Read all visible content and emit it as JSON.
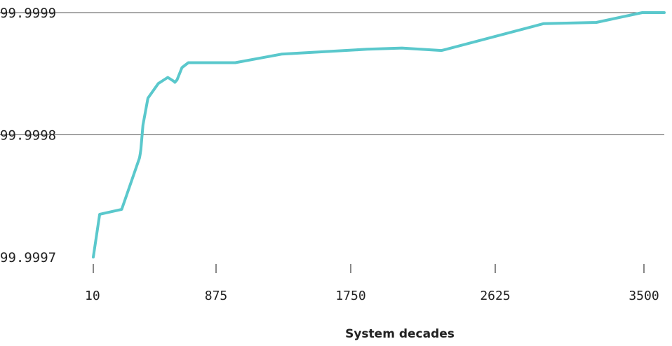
{
  "chart_data": {
    "type": "line",
    "title": "",
    "xlabel": "System decades",
    "ylabel": "",
    "xlim": [
      10,
      3500
    ],
    "ylim": [
      99.9997,
      99.9999
    ],
    "x_ticks": [
      10,
      875,
      1750,
      2625,
      3500
    ],
    "y_ticks": [
      "99.9997",
      "99.9998",
      "99.9999"
    ],
    "grid": "horizontal",
    "legend": "none",
    "line_color": "#5ac8cc",
    "series": [
      {
        "x": [
          10,
          55,
          210,
          335,
          340,
          345,
          360,
          395,
          468,
          535,
          575,
          585,
          600,
          635,
          680,
          1000,
          1300,
          1850,
          2060,
          2300,
          2910,
          3220,
          3490,
          3700
        ],
        "y": [
          99.9997,
          99.999735,
          99.999739,
          99.999781,
          99.999784,
          99.999788,
          99.999808,
          99.99983,
          99.999842,
          99.999847,
          99.999844,
          99.999843,
          99.999845,
          99.999855,
          99.999859,
          99.999859,
          99.999866,
          99.99987,
          99.999871,
          99.999869,
          99.999891,
          99.999892,
          99.9999,
          99.9999
        ]
      }
    ]
  }
}
